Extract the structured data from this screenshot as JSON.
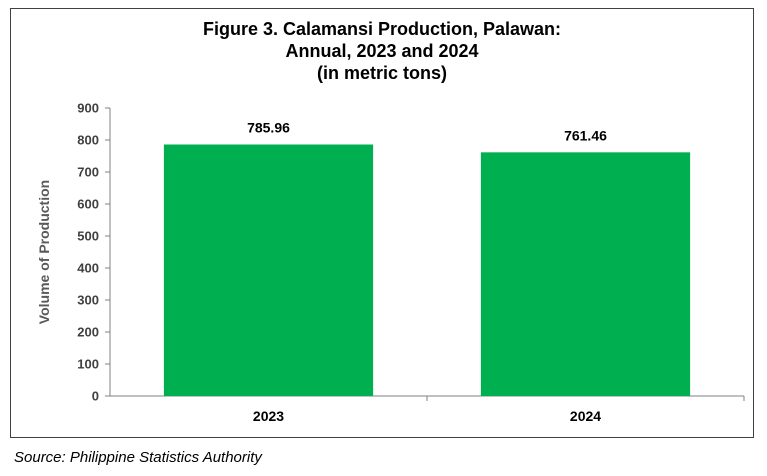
{
  "chart_data": {
    "type": "bar",
    "title_lines": [
      "Figure 3. Calamansi Production, Palawan:",
      "Annual, 2023 and 2024",
      "(in metric tons)"
    ],
    "categories": [
      "2023",
      "2024"
    ],
    "values": [
      785.96,
      761.46
    ],
    "data_labels": [
      "785.96",
      "761.46"
    ],
    "xlabel": "",
    "ylabel": "Volume of Production",
    "ylim": [
      0,
      900
    ],
    "yticks": [
      0,
      100,
      200,
      300,
      400,
      500,
      600,
      700,
      800,
      900
    ],
    "grid": false,
    "legend": "none",
    "bar_color": "#00b050"
  },
  "source": "Source: Philippine Statistics Authority"
}
